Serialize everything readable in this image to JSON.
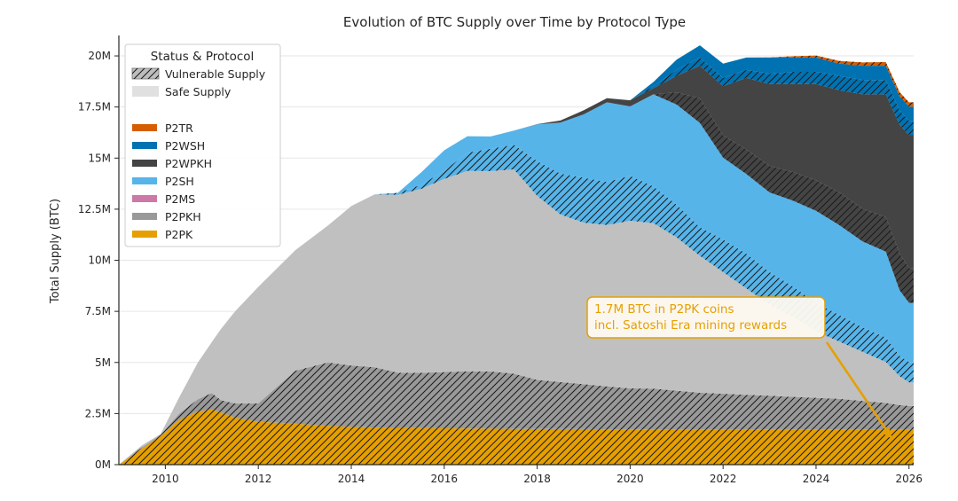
{
  "chart_data": {
    "type": "area",
    "title": "Evolution of BTC Supply over Time by Protocol Type",
    "xlabel": "",
    "ylabel": "Total Supply (BTC)",
    "xlim": [
      2009.0,
      2026.1
    ],
    "ylim": [
      0,
      21000000
    ],
    "x_ticks": [
      2010,
      2012,
      2014,
      2016,
      2018,
      2020,
      2022,
      2024,
      2026
    ],
    "x_tick_labels": [
      "2010",
      "2012",
      "2014",
      "2016",
      "2018",
      "2020",
      "2022",
      "2024",
      "2026"
    ],
    "y_ticks": [
      0,
      2500000,
      5000000,
      7500000,
      10000000,
      12500000,
      15000000,
      17500000,
      20000000
    ],
    "y_tick_labels": [
      "0M",
      "2.5M",
      "5M",
      "7.5M",
      "10M",
      "12.5M",
      "15M",
      "17.5M",
      "20M"
    ],
    "grid": "horizontal",
    "legend": {
      "title": "Status & Protocol",
      "placement": "top-left",
      "status_entries": [
        "Vulnerable Supply",
        "Safe Supply"
      ],
      "protocol_entries": [
        "P2TR",
        "P2WSH",
        "P2WPKH",
        "P2SH",
        "P2MS",
        "P2PKH",
        "P2PK"
      ]
    },
    "colors": {
      "P2PK": "#E69F00",
      "P2MS": "#CC79A7",
      "P2PKH": "#999999",
      "P2SH": "#56B4E9",
      "P2WPKH": "#444444",
      "P2WSH": "#0072B2",
      "P2TR": "#D55E00",
      "safe_overlay": "#c0c0c0",
      "legend_safe": "#e0e0e0",
      "annotation": "#E69F00"
    },
    "x": [
      2009.0,
      2009.5,
      2009.9,
      2010.3,
      2010.7,
      2011.0,
      2011.2,
      2011.5,
      2012.0,
      2012.8,
      2013.5,
      2014.0,
      2014.5,
      2015.0,
      2015.5,
      2016.0,
      2016.5,
      2017.0,
      2017.5,
      2018.0,
      2018.5,
      2019.0,
      2019.5,
      2020.0,
      2020.5,
      2021.0,
      2021.5,
      2022.0,
      2022.5,
      2023.0,
      2023.5,
      2024.0,
      2024.5,
      2025.0,
      2025.5,
      2025.8,
      2026.0,
      2026.1
    ],
    "series": [
      {
        "name": "P2PK",
        "total": [
          0,
          800000,
          1400000,
          2200000,
          2600000,
          2700000,
          2550000,
          2300000,
          2100000,
          2000000,
          1900000,
          1850000,
          1820000,
          1800000,
          1790000,
          1780000,
          1770000,
          1760000,
          1750000,
          1750000,
          1740000,
          1740000,
          1730000,
          1730000,
          1720000,
          1720000,
          1720000,
          1720000,
          1720000,
          1720000,
          1720000,
          1720000,
          1720000,
          1720000,
          1720000,
          1720000,
          1720000,
          1720000
        ],
        "vulnerable": [
          0,
          800000,
          1400000,
          2200000,
          2600000,
          2700000,
          2550000,
          2300000,
          2100000,
          2000000,
          1900000,
          1850000,
          1820000,
          1800000,
          1790000,
          1780000,
          1770000,
          1760000,
          1750000,
          1750000,
          1740000,
          1740000,
          1730000,
          1730000,
          1720000,
          1720000,
          1720000,
          1720000,
          1720000,
          1720000,
          1720000,
          1720000,
          1720000,
          1720000,
          1720000,
          1720000,
          1720000,
          1720000
        ]
      },
      {
        "name": "P2MS",
        "total": [
          0,
          0,
          0,
          0,
          0,
          0,
          0,
          0,
          0,
          0,
          0,
          0,
          0,
          0,
          0,
          0,
          0,
          0,
          0,
          0,
          0,
          0,
          0,
          0,
          0,
          0,
          0,
          0,
          0,
          0,
          0,
          0,
          0,
          0,
          0,
          0,
          0,
          0
        ],
        "vulnerable": [
          0,
          0,
          0,
          0,
          0,
          0,
          0,
          0,
          0,
          0,
          0,
          0,
          0,
          0,
          0,
          0,
          0,
          0,
          0,
          0,
          0,
          0,
          0,
          0,
          0,
          0,
          0,
          0,
          0,
          0,
          0,
          0,
          0,
          0,
          0,
          0,
          0,
          0
        ]
      },
      {
        "name": "P2PKH",
        "total": [
          0,
          150000,
          100000,
          1100000,
          2400000,
          3300000,
          4100000,
          5200000,
          6600000,
          8500000,
          9800000,
          10800000,
          11400000,
          11400000,
          11700000,
          12200000,
          12600000,
          12600000,
          12700000,
          11400000,
          10500000,
          10100000,
          10000000,
          10200000,
          10100000,
          9400000,
          8500000,
          7700000,
          6900000,
          6100000,
          5500000,
          4800000,
          4300000,
          3800000,
          3300000,
          2600000,
          2300000,
          2300000
        ],
        "vulnerable": [
          0,
          50000,
          60000,
          300000,
          600000,
          800000,
          600000,
          700000,
          900000,
          2600000,
          3100000,
          3000000,
          2950000,
          2700000,
          2700000,
          2750000,
          2800000,
          2800000,
          2700000,
          2400000,
          2300000,
          2200000,
          2100000,
          2000000,
          2000000,
          1900000,
          1800000,
          1750000,
          1700000,
          1650000,
          1600000,
          1550000,
          1500000,
          1400000,
          1300000,
          1200000,
          1150000,
          1150000
        ]
      },
      {
        "name": "P2SH",
        "total": [
          0,
          0,
          0,
          0,
          0,
          0,
          0,
          0,
          0,
          0,
          0,
          0,
          0,
          100000,
          800000,
          1400000,
          1700000,
          1700000,
          1900000,
          3500000,
          4500000,
          5300000,
          6000000,
          5600000,
          6300000,
          6500000,
          6500000,
          5600000,
          5600000,
          5500000,
          5700000,
          5900000,
          5700000,
          5400000,
          5400000,
          4200000,
          3900000,
          3900000
        ],
        "vulnerable": [
          0,
          0,
          0,
          0,
          0,
          0,
          0,
          0,
          0,
          0,
          0,
          0,
          0,
          100000,
          200000,
          400000,
          900000,
          1100000,
          1200000,
          1700000,
          2000000,
          2200000,
          2100000,
          2200000,
          1800000,
          1600000,
          1400000,
          1600000,
          1700000,
          1600000,
          1500000,
          1400000,
          1300000,
          1200000,
          1200000,
          1000000,
          1000000,
          1000000
        ]
      },
      {
        "name": "P2WPKH",
        "total": [
          0,
          0,
          0,
          0,
          0,
          0,
          0,
          0,
          0,
          0,
          0,
          0,
          0,
          0,
          0,
          0,
          0,
          0,
          0,
          10000,
          100000,
          200000,
          200000,
          300000,
          300000,
          1400000,
          2800000,
          3500000,
          4700000,
          5300000,
          5700000,
          6200000,
          6600000,
          7200000,
          7700000,
          8100000,
          8200000,
          8200000
        ],
        "vulnerable": [
          0,
          0,
          0,
          0,
          0,
          0,
          0,
          0,
          0,
          0,
          0,
          0,
          0,
          0,
          0,
          0,
          0,
          0,
          0,
          0,
          0,
          0,
          0,
          0,
          0,
          600000,
          1200000,
          1100000,
          1200000,
          1300000,
          1400000,
          1500000,
          1600000,
          1600000,
          1700000,
          1800000,
          1700000,
          1700000
        ]
      },
      {
        "name": "P2WSH",
        "total": [
          0,
          0,
          0,
          0,
          0,
          0,
          0,
          0,
          0,
          0,
          0,
          0,
          0,
          0,
          0,
          0,
          0,
          0,
          0,
          0,
          0,
          0,
          0,
          0,
          300000,
          800000,
          1000000,
          1100000,
          1000000,
          1300000,
          1300000,
          1300000,
          1300000,
          1400000,
          1400000,
          1400000,
          1400000,
          1400000
        ],
        "vulnerable": [
          0,
          0,
          0,
          0,
          0,
          0,
          0,
          0,
          0,
          0,
          0,
          0,
          0,
          0,
          0,
          0,
          0,
          0,
          0,
          0,
          0,
          0,
          0,
          0,
          100000,
          300000,
          400000,
          400000,
          400000,
          500000,
          600000,
          600000,
          700000,
          700000,
          700000,
          700000,
          700000,
          700000
        ]
      },
      {
        "name": "P2TR",
        "total": [
          0,
          0,
          0,
          0,
          0,
          0,
          0,
          0,
          0,
          0,
          0,
          0,
          0,
          0,
          0,
          0,
          0,
          0,
          0,
          0,
          0,
          0,
          0,
          0,
          0,
          0,
          0,
          0,
          0,
          10000,
          60000,
          100000,
          130000,
          160000,
          180000,
          200000,
          210000,
          210000
        ],
        "vulnerable": [
          0,
          0,
          0,
          0,
          0,
          0,
          0,
          0,
          0,
          0,
          0,
          0,
          0,
          0,
          0,
          0,
          0,
          0,
          0,
          0,
          0,
          0,
          0,
          0,
          0,
          0,
          0,
          0,
          0,
          10000,
          60000,
          100000,
          130000,
          160000,
          180000,
          200000,
          210000,
          210000
        ]
      }
    ],
    "annotation": {
      "text_lines": [
        "1.7M BTC in P2PK coins",
        "incl. Satoshi Era mining rewards"
      ],
      "target": {
        "x": 2025.85,
        "y": 1300000
      },
      "box_anchor": {
        "x": 2022.0,
        "y": 6500000
      }
    }
  }
}
